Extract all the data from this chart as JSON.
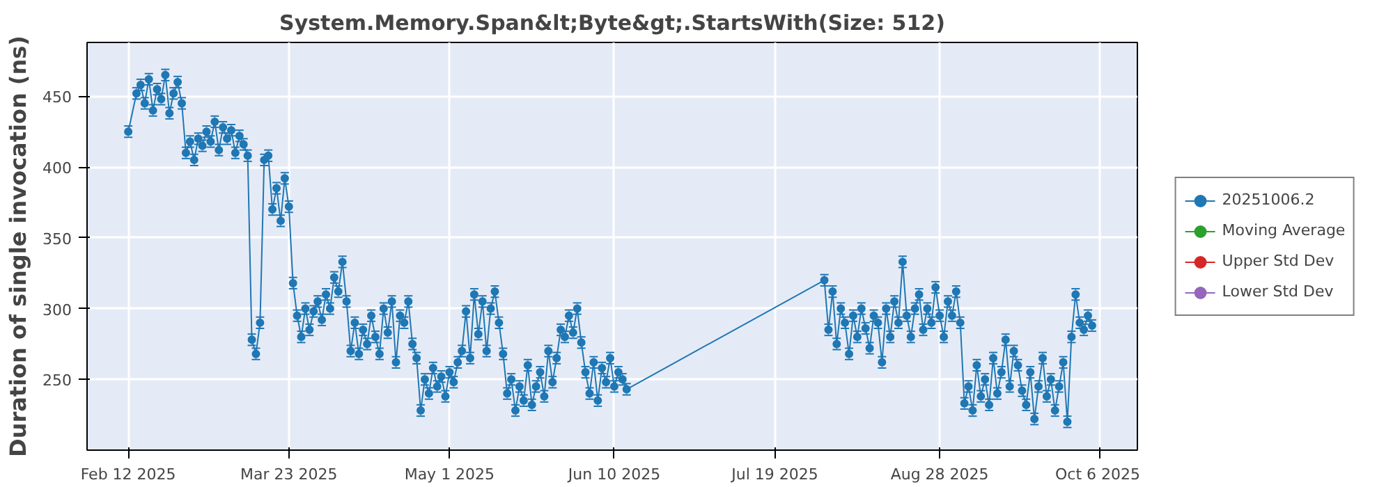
{
  "chart_data": {
    "type": "line",
    "title": "System.Memory.Span&lt;Byte&gt;.StartsWith(Size: 512)",
    "ylabel": "Duration of single invocation (ns)",
    "xlim": [
      "2025-02-02",
      "2025-10-15"
    ],
    "ylim": [
      200,
      488
    ],
    "xticks": [
      {
        "value": "2025-02-12",
        "label": "Feb 12 2025"
      },
      {
        "value": "2025-03-23",
        "label": "Mar 23 2025"
      },
      {
        "value": "2025-05-01",
        "label": "May 1 2025"
      },
      {
        "value": "2025-06-10",
        "label": "Jun 10 2025"
      },
      {
        "value": "2025-07-19",
        "label": "Jul 19 2025"
      },
      {
        "value": "2025-08-28",
        "label": "Aug 28 2025"
      },
      {
        "value": "2025-10-06",
        "label": "Oct 6 2025"
      }
    ],
    "yticks": [
      250,
      300,
      350,
      400,
      450
    ],
    "grid": true,
    "legend": "right",
    "marker": "circle",
    "line_style": "solid",
    "series": [
      {
        "name": "20251006.2",
        "color": "#1f77b4",
        "errors": [
          4,
          4,
          4,
          4,
          4,
          4,
          4,
          4,
          4,
          4,
          4,
          4,
          4,
          4,
          4,
          4,
          4,
          4,
          4,
          4,
          4,
          4,
          4,
          4,
          4,
          4,
          4,
          4,
          4,
          4,
          4,
          4,
          4,
          4,
          4,
          4,
          4,
          4,
          4,
          4,
          4,
          4,
          4,
          4,
          4,
          4,
          4,
          4,
          4,
          4,
          4,
          4,
          4,
          4,
          4,
          4,
          4,
          4,
          4,
          4,
          4,
          4,
          4,
          4,
          4,
          4,
          4,
          4,
          4,
          4,
          4,
          4,
          4,
          4,
          4,
          4,
          4,
          4,
          4,
          4,
          4,
          4,
          4,
          4,
          4,
          4,
          4,
          4,
          4,
          4,
          4,
          4,
          4,
          4,
          4,
          4,
          4,
          4,
          4,
          4,
          4,
          4,
          4,
          4,
          4,
          4,
          4,
          4,
          4,
          4,
          4,
          4,
          4,
          4,
          4,
          4,
          4,
          4,
          4,
          4,
          4,
          4,
          4,
          4,
          4,
          4,
          4,
          4,
          4,
          4,
          4,
          4,
          4,
          4,
          4,
          4,
          4,
          4,
          4,
          4,
          4,
          4,
          4,
          4,
          4,
          4,
          4,
          4,
          4,
          4,
          4,
          4,
          4,
          4,
          4,
          4,
          4,
          4,
          4,
          4,
          4,
          4,
          4,
          4,
          4,
          4,
          4,
          4,
          4,
          4,
          4,
          4,
          4,
          4,
          4,
          4,
          4,
          4,
          4,
          4,
          4,
          4,
          4,
          4,
          4,
          4,
          4
        ],
        "x": [
          "2025-02-12",
          "2025-02-14",
          "2025-02-15",
          "2025-02-16",
          "2025-02-17",
          "2025-02-18",
          "2025-02-19",
          "2025-02-20",
          "2025-02-21",
          "2025-02-22",
          "2025-02-23",
          "2025-02-24",
          "2025-02-25",
          "2025-02-26",
          "2025-02-27",
          "2025-02-28",
          "2025-03-01",
          "2025-03-02",
          "2025-03-03",
          "2025-03-04",
          "2025-03-05",
          "2025-03-06",
          "2025-03-07",
          "2025-03-08",
          "2025-03-09",
          "2025-03-10",
          "2025-03-11",
          "2025-03-12",
          "2025-03-13",
          "2025-03-14",
          "2025-03-15",
          "2025-03-16",
          "2025-03-17",
          "2025-03-18",
          "2025-03-19",
          "2025-03-20",
          "2025-03-21",
          "2025-03-22",
          "2025-03-23",
          "2025-03-24",
          "2025-03-25",
          "2025-03-26",
          "2025-03-27",
          "2025-03-28",
          "2025-03-29",
          "2025-03-30",
          "2025-03-31",
          "2025-04-01",
          "2025-04-02",
          "2025-04-03",
          "2025-04-04",
          "2025-04-05",
          "2025-04-06",
          "2025-04-07",
          "2025-04-08",
          "2025-04-09",
          "2025-04-10",
          "2025-04-11",
          "2025-04-12",
          "2025-04-13",
          "2025-04-14",
          "2025-04-15",
          "2025-04-16",
          "2025-04-17",
          "2025-04-18",
          "2025-04-19",
          "2025-04-20",
          "2025-04-21",
          "2025-04-22",
          "2025-04-23",
          "2025-04-24",
          "2025-04-25",
          "2025-04-26",
          "2025-04-27",
          "2025-04-28",
          "2025-04-29",
          "2025-04-30",
          "2025-05-01",
          "2025-05-02",
          "2025-05-03",
          "2025-05-04",
          "2025-05-05",
          "2025-05-06",
          "2025-05-07",
          "2025-05-08",
          "2025-05-09",
          "2025-05-10",
          "2025-05-11",
          "2025-05-12",
          "2025-05-13",
          "2025-05-14",
          "2025-05-15",
          "2025-05-16",
          "2025-05-17",
          "2025-05-18",
          "2025-05-19",
          "2025-05-20",
          "2025-05-21",
          "2025-05-22",
          "2025-05-23",
          "2025-05-24",
          "2025-05-25",
          "2025-05-26",
          "2025-05-27",
          "2025-05-28",
          "2025-05-29",
          "2025-05-30",
          "2025-05-31",
          "2025-06-01",
          "2025-06-02",
          "2025-06-03",
          "2025-06-04",
          "2025-06-05",
          "2025-06-06",
          "2025-06-07",
          "2025-06-08",
          "2025-06-09",
          "2025-06-10",
          "2025-06-11",
          "2025-06-12",
          "2025-06-13",
          "2025-07-31",
          "2025-08-01",
          "2025-08-02",
          "2025-08-03",
          "2025-08-04",
          "2025-08-05",
          "2025-08-06",
          "2025-08-07",
          "2025-08-08",
          "2025-08-09",
          "2025-08-10",
          "2025-08-11",
          "2025-08-12",
          "2025-08-13",
          "2025-08-14",
          "2025-08-15",
          "2025-08-16",
          "2025-08-17",
          "2025-08-18",
          "2025-08-19",
          "2025-08-20",
          "2025-08-21",
          "2025-08-22",
          "2025-08-23",
          "2025-08-24",
          "2025-08-25",
          "2025-08-26",
          "2025-08-27",
          "2025-08-28",
          "2025-08-29",
          "2025-08-30",
          "2025-08-31",
          "2025-09-01",
          "2025-09-02",
          "2025-09-03",
          "2025-09-04",
          "2025-09-05",
          "2025-09-06",
          "2025-09-07",
          "2025-09-08",
          "2025-09-09",
          "2025-09-10",
          "2025-09-11",
          "2025-09-12",
          "2025-09-13",
          "2025-09-14",
          "2025-09-15",
          "2025-09-16",
          "2025-09-17",
          "2025-09-18",
          "2025-09-19",
          "2025-09-20",
          "2025-09-21",
          "2025-09-22",
          "2025-09-23",
          "2025-09-24",
          "2025-09-25",
          "2025-09-26",
          "2025-09-27",
          "2025-09-28",
          "2025-09-29",
          "2025-09-30",
          "2025-10-01",
          "2025-10-02",
          "2025-10-03",
          "2025-10-04"
        ],
        "values": [
          425,
          452,
          458,
          445,
          462,
          440,
          455,
          448,
          465,
          438,
          452,
          460,
          445,
          410,
          418,
          405,
          420,
          415,
          425,
          418,
          432,
          412,
          428,
          420,
          426,
          410,
          422,
          416,
          408,
          278,
          268,
          290,
          405,
          408,
          370,
          385,
          362,
          392,
          372,
          318,
          295,
          280,
          300,
          285,
          298,
          305,
          292,
          310,
          300,
          322,
          312,
          333,
          305,
          270,
          290,
          268,
          285,
          275,
          295,
          280,
          268,
          300,
          283,
          305,
          262,
          295,
          290,
          305,
          275,
          265,
          228,
          250,
          240,
          258,
          245,
          252,
          238,
          255,
          248,
          262,
          270,
          298,
          265,
          310,
          282,
          305,
          270,
          300,
          312,
          290,
          268,
          240,
          250,
          228,
          245,
          235,
          260,
          232,
          245,
          255,
          238,
          270,
          248,
          265,
          285,
          280,
          295,
          283,
          300,
          276,
          255,
          240,
          262,
          235,
          258,
          248,
          265,
          245,
          255,
          250,
          243,
          320,
          285,
          312,
          275,
          300,
          290,
          268,
          295,
          280,
          300,
          286,
          272,
          295,
          290,
          262,
          300,
          280,
          305,
          290,
          333,
          295,
          280,
          300,
          310,
          285,
          300,
          290,
          315,
          295,
          280,
          305,
          295,
          312,
          290,
          233,
          245,
          228,
          260,
          238,
          250,
          232,
          265,
          240,
          255,
          278,
          245,
          270,
          260,
          242,
          232,
          255,
          222,
          245,
          265,
          238,
          250,
          228,
          245,
          262,
          220,
          280,
          310,
          290,
          285,
          295,
          288
        ]
      },
      {
        "name": "Moving Average",
        "color": "#2ca02c"
      },
      {
        "name": "Upper Std Dev",
        "color": "#d62728"
      },
      {
        "name": "Lower Std Dev",
        "color": "#9467bd"
      }
    ]
  }
}
